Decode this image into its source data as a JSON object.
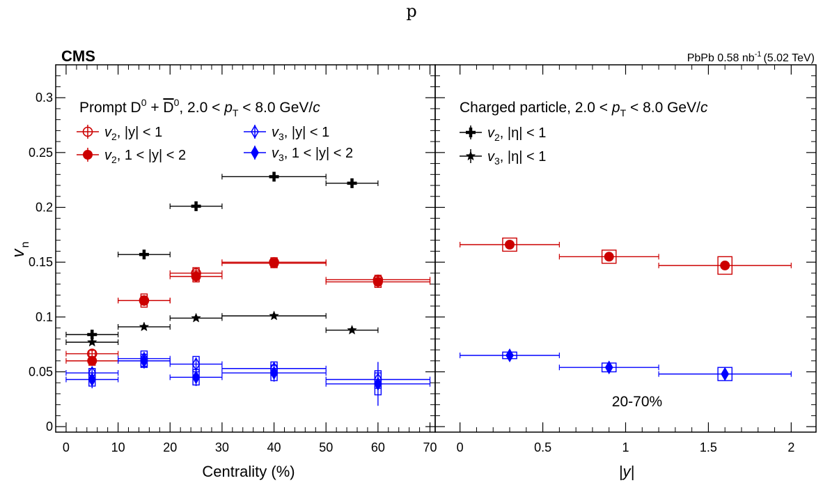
{
  "top_letter": "p",
  "header": {
    "experiment": "CMS",
    "luminosity": "PbPb 0.58 nb",
    "lumi_superscript": "-1",
    "energy": "(5.02 TeV)"
  },
  "ylabel": "v",
  "ylabel_sub": "n",
  "colors": {
    "red": "#cc0000",
    "blue": "#0000ff",
    "black": "#000000"
  },
  "chart_data": [
    {
      "type": "scatter",
      "panel": "left",
      "xlabel": "Centrality (%)",
      "xlim": [
        -2,
        71
      ],
      "ylim": [
        -0.005,
        0.33
      ],
      "x_ticks": [
        0,
        10,
        20,
        30,
        40,
        50,
        60,
        70
      ],
      "y_ticks": [
        0,
        0.05,
        0.1,
        0.15,
        0.2,
        0.25,
        0.3
      ],
      "y_tick_labels": [
        "0",
        "0.05",
        "0.1",
        "0.15",
        "0.2",
        "0.25",
        "0.3"
      ],
      "legend_title_parts": [
        "Prompt D",
        "0",
        " + ",
        "D",
        "0",
        ", 2.0 < ",
        "p",
        "T",
        " < 8.0 GeV/",
        "c"
      ],
      "legend": [
        {
          "sym": "v",
          "sub": "2",
          "label": ", |y| < 1"
        },
        {
          "sym": "v",
          "sub": "3",
          "label": ", |y| < 1"
        },
        {
          "sym": "v",
          "sub": "2",
          "label": ", 1 < |y| < 2"
        },
        {
          "sym": "v",
          "sub": "3",
          "label": ", 1 < |y| < 2"
        }
      ],
      "series": [
        {
          "key": "d_v2_mid",
          "marker": "open-circle",
          "color": "#cc0000",
          "points": [
            [
              5,
              0.0665,
              5,
              0.004,
              0.003
            ],
            [
              15,
              0.115,
              5,
              0.004,
              0.006
            ],
            [
              25,
              0.14,
              5,
              0.004,
              0.005
            ],
            [
              40,
              0.15,
              10,
              0.003,
              0.004
            ],
            [
              60,
              0.134,
              10,
              0.004,
              0.004
            ]
          ]
        },
        {
          "key": "d_v2_fwd",
          "marker": "filled-circle",
          "color": "#cc0000",
          "points": [
            [
              5,
              0.06,
              5,
              0.004,
              0.004
            ],
            [
              15,
              0.115,
              5,
              0.005,
              0.004
            ],
            [
              25,
              0.137,
              5,
              0.005,
              0.005
            ],
            [
              40,
              0.149,
              10,
              0.004,
              0.004
            ],
            [
              60,
              0.132,
              10,
              0.005,
              0.005
            ]
          ]
        },
        {
          "key": "d_v3_mid",
          "marker": "open-diamond",
          "color": "#0000ff",
          "points": [
            [
              5,
              0.049,
              5,
              0.006,
              0.004
            ],
            [
              15,
              0.062,
              5,
              0.006,
              0.007
            ],
            [
              25,
              0.057,
              5,
              0.006,
              0.007
            ],
            [
              40,
              0.053,
              10,
              0.005,
              0.006
            ],
            [
              60,
              0.043,
              10,
              0.008,
              0.008
            ]
          ]
        },
        {
          "key": "d_v3_fwd",
          "marker": "filled-diamond",
          "color": "#0000ff",
          "points": [
            [
              5,
              0.043,
              5,
              0.008,
              0.006
            ],
            [
              15,
              0.06,
              5,
              0.007,
              0.006
            ],
            [
              25,
              0.045,
              5,
              0.008,
              0.007
            ],
            [
              40,
              0.049,
              10,
              0.008,
              0.007
            ],
            [
              60,
              0.039,
              10,
              0.02,
              0.01
            ]
          ]
        },
        {
          "key": "h_v2",
          "marker": "cross",
          "color": "#000000",
          "points": [
            [
              5,
              0.084,
              5,
              0.001,
              0.002
            ],
            [
              15,
              0.157,
              5,
              0.001,
              0.002
            ],
            [
              25,
              0.201,
              5,
              0.001,
              0.002
            ],
            [
              40,
              0.228,
              10,
              0.001,
              0.002
            ],
            [
              55,
              0.222,
              5,
              0.001,
              0.002
            ]
          ]
        },
        {
          "key": "h_v3",
          "marker": "star",
          "color": "#000000",
          "points": [
            [
              5,
              0.077,
              5,
              0.001,
              0.001
            ],
            [
              15,
              0.091,
              5,
              0.001,
              0.001
            ],
            [
              25,
              0.099,
              5,
              0.001,
              0.001
            ],
            [
              40,
              0.101,
              10,
              0.001,
              0.001
            ],
            [
              55,
              0.088,
              5,
              0.001,
              0.001
            ]
          ]
        }
      ]
    },
    {
      "type": "scatter",
      "panel": "right",
      "xlabel": "|y|",
      "xlim": [
        -0.15,
        2.15
      ],
      "ylim": [
        -0.005,
        0.33
      ],
      "x_ticks": [
        0,
        0.5,
        1,
        1.5,
        2
      ],
      "x_tick_labels": [
        "0",
        "0.5",
        "1",
        "1.5",
        "2"
      ],
      "legend_title_parts": [
        "Charged particle, 2.0 < ",
        "p",
        "T",
        " < 8.0 GeV/",
        "c"
      ],
      "legend": [
        {
          "sym": "v",
          "sub": "2",
          "label": ", |η| < 1"
        },
        {
          "sym": "v",
          "sub": "3",
          "label": ", |η| < 1"
        }
      ],
      "annotation": "20-70%",
      "series": [
        {
          "key": "y_v2",
          "marker": "filled-circle",
          "color": "#cc0000",
          "points": [
            [
              0.3,
              0.166,
              0.3,
              0.003,
              0.006
            ],
            [
              0.9,
              0.155,
              0.3,
              0.003,
              0.006
            ],
            [
              1.6,
              0.147,
              0.4,
              0.003,
              0.008
            ]
          ]
        },
        {
          "key": "y_v3",
          "marker": "filled-diamond",
          "color": "#0000ff",
          "points": [
            [
              0.3,
              0.065,
              0.3,
              0.003,
              0.003
            ],
            [
              0.9,
              0.054,
              0.3,
              0.004,
              0.004
            ],
            [
              1.6,
              0.048,
              0.4,
              0.005,
              0.006
            ]
          ]
        }
      ]
    }
  ]
}
